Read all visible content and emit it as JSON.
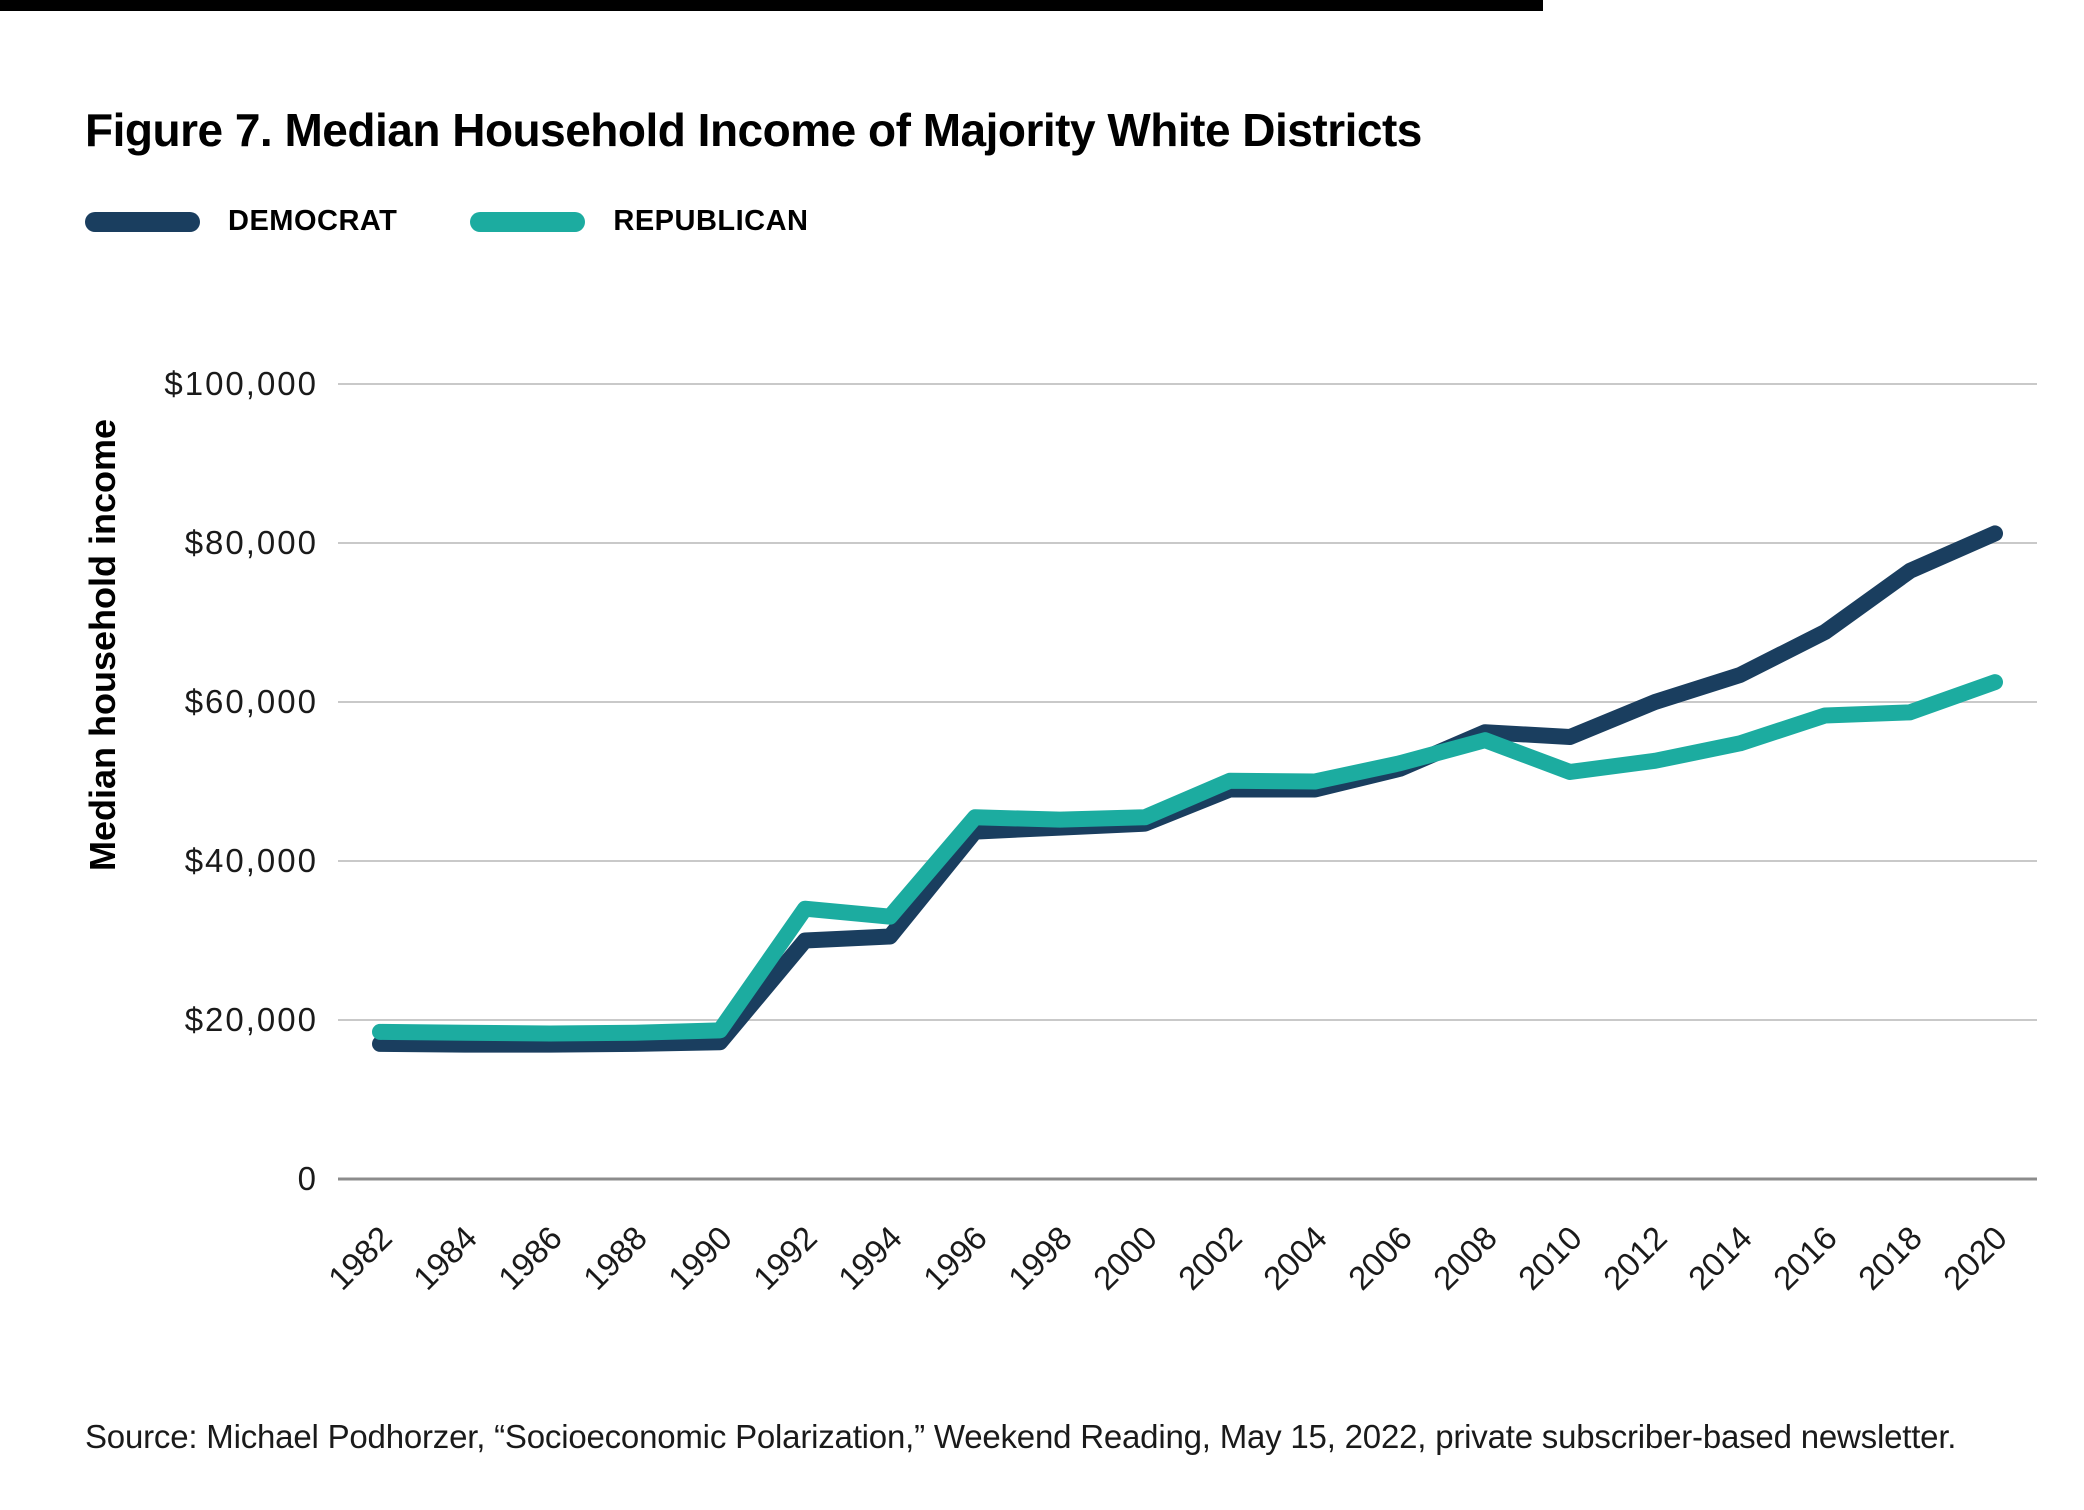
{
  "title": "Figure 7. Median Household Income of Majority White Districts",
  "legend": [
    {
      "label": "DEMOCRAT",
      "color": "#1a3e5f"
    },
    {
      "label": "REPUBLICAN",
      "color": "#1caca0"
    }
  ],
  "y_axis_label": "Median household income",
  "source": "Source: Michael Podhorzer, “Socioeconomic Polarization,” Weekend Reading, May 15, 2022, private subscriber-based newsletter.",
  "colors": {
    "democrat": "#1a3e5f",
    "republican": "#1caca0",
    "gridline": "#c9c9c9",
    "zero_axis": "#8c8c8c",
    "text": "#1a1a1a",
    "top_rule": "#000000"
  },
  "chart_data": {
    "type": "line",
    "title": "Figure 7. Median Household Income of Majority White Districts",
    "xlabel": "",
    "ylabel": "Median household income",
    "x": [
      1982,
      1984,
      1986,
      1988,
      1990,
      1992,
      1994,
      1996,
      1998,
      2000,
      2002,
      2004,
      2006,
      2008,
      2010,
      2012,
      2014,
      2016,
      2018,
      2020
    ],
    "series": [
      {
        "name": "DEMOCRAT",
        "color": "#1a3e5f",
        "values": [
          17000,
          16900,
          16900,
          17000,
          17200,
          30000,
          30500,
          43700,
          44200,
          44700,
          49000,
          49000,
          51600,
          56200,
          55600,
          60000,
          63400,
          68800,
          76500,
          81200
        ]
      },
      {
        "name": "REPUBLICAN",
        "color": "#1caca0",
        "values": [
          18500,
          18400,
          18300,
          18400,
          18700,
          34000,
          33000,
          45500,
          45200,
          45500,
          50100,
          50000,
          52300,
          55200,
          51200,
          52600,
          54800,
          58300,
          58700,
          62500
        ]
      }
    ],
    "ylim": [
      0,
      100000
    ],
    "yticks": [
      {
        "value": 0,
        "label": "0"
      },
      {
        "value": 20000,
        "label": "$20,000"
      },
      {
        "value": 40000,
        "label": "$40,000"
      },
      {
        "value": 60000,
        "label": "$60,000"
      },
      {
        "value": 80000,
        "label": "$80,000"
      },
      {
        "value": 100000,
        "label": "$100,000"
      }
    ],
    "grid": true,
    "legend_position": "top-left"
  }
}
